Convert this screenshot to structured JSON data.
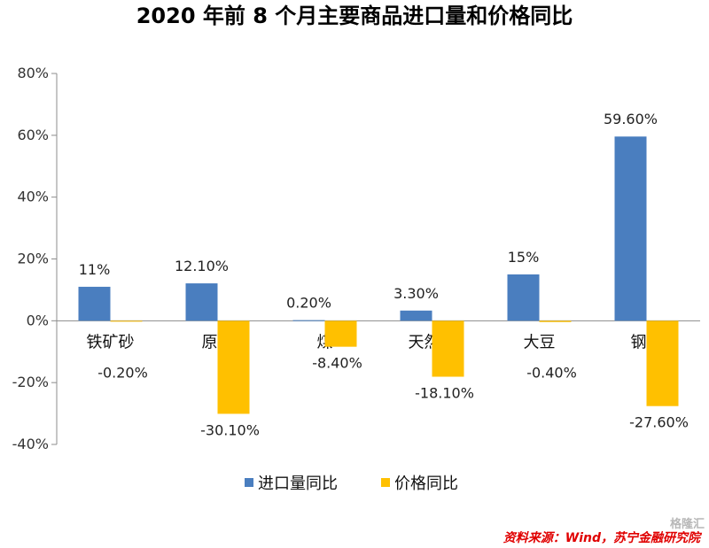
{
  "chart_data": {
    "type": "bar",
    "title": "2020 年前 8 个月主要商品进口量和价格同比",
    "categories": [
      "铁矿砂",
      "原油",
      "煤",
      "天然气",
      "大豆",
      "钢材"
    ],
    "series": [
      {
        "name": "进口量同比",
        "color": "#4a7ebf",
        "values": [
          11,
          12.1,
          0.2,
          3.3,
          15,
          59.6
        ],
        "labels": [
          "11%",
          "12.10%",
          "0.20%",
          "3.30%",
          "15%",
          "59.60%"
        ]
      },
      {
        "name": "价格同比",
        "color": "#ffc000",
        "values": [
          -0.2,
          -30.1,
          -8.4,
          -18.1,
          -0.4,
          -27.6
        ],
        "labels": [
          "-0.20%",
          "-30.10%",
          "-8.40%",
          "-18.10%",
          "-0.40%",
          "-27.60%"
        ]
      }
    ],
    "ylim": [
      -40,
      80
    ],
    "yticks": [
      80,
      60,
      40,
      20,
      0,
      -20,
      -40
    ],
    "ytick_labels": [
      "80%",
      "60%",
      "40%",
      "20%",
      "0%",
      "-20%",
      "-40%"
    ],
    "grid": false,
    "legend_position": "bottom"
  },
  "source": "资料来源：Wind，苏宁金融研究院",
  "watermark": "格隆汇"
}
